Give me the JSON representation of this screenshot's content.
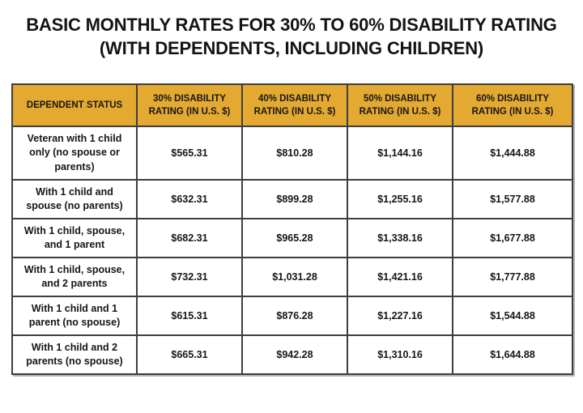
{
  "title": {
    "line1": "BASIC MONTHLY RATES FOR 30% TO 60% DISABILITY RATING",
    "line2": "(WITH DEPENDENTS, INCLUDING CHILDREN)"
  },
  "colors": {
    "header_bg": "#e4a931",
    "border": "#3e3e3e",
    "title_text": "#141414"
  },
  "chart_data": {
    "type": "table",
    "title": "BASIC MONTHLY RATES FOR 30% TO 60% DISABILITY RATING (WITH DEPENDENTS, INCLUDING CHILDREN)",
    "columns": [
      "DEPENDENT STATUS",
      "30% DISABILITY RATING (IN U.S. $)",
      "40% DISABILITY RATING (IN U.S. $)",
      "50% DISABILITY RATING (IN U.S. $)",
      "60% DISABILITY RATING (IN U.S. $)"
    ],
    "rows": [
      {
        "dependent_status": "Veteran with 1 child only (no spouse or parents)",
        "values": [
          "$565.31",
          "$810.28",
          "$1,144.16",
          "$1,444.88"
        ]
      },
      {
        "dependent_status": "With 1 child and spouse (no parents)",
        "values": [
          "$632.31",
          "$899.28",
          "$1,255.16",
          "$1,577.88"
        ]
      },
      {
        "dependent_status": "With 1 child, spouse, and 1 parent",
        "values": [
          "$682.31",
          "$965.28",
          "$1,338.16",
          "$1,677.88"
        ]
      },
      {
        "dependent_status": "With 1 child, spouse, and 2 parents",
        "values": [
          "$732.31",
          "$1,031.28",
          "$1,421.16",
          "$1,777.88"
        ]
      },
      {
        "dependent_status": "With 1 child and 1 parent (no spouse)",
        "values": [
          "$615.31",
          "$876.28",
          "$1,227.16",
          "$1,544.88"
        ]
      },
      {
        "dependent_status": "With 1 child and 2 parents (no spouse)",
        "values": [
          "$665.31",
          "$942.28",
          "$1,310.16",
          "$1,644.88"
        ]
      }
    ]
  }
}
